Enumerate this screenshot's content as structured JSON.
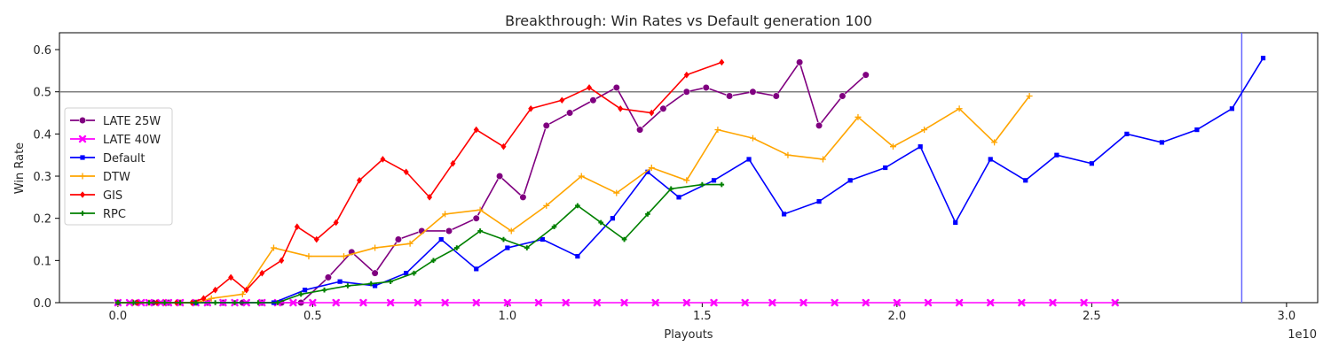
{
  "chart_data": {
    "type": "line",
    "title": "Breakthrough: Win Rates vs Default generation 100",
    "xlabel": "Playouts",
    "ylabel": "Win Rate",
    "x_offset_label": "1e10",
    "xlim": [
      -0.15,
      3.08
    ],
    "ylim": [
      0.0,
      0.64
    ],
    "x_ticks": [
      0.0,
      0.5,
      1.0,
      1.5,
      2.0,
      2.5,
      3.0
    ],
    "x_tick_labels": [
      "0.0",
      "0.5",
      "1.0",
      "1.5",
      "2.0",
      "2.5",
      "3.0"
    ],
    "y_ticks": [
      0.0,
      0.1,
      0.2,
      0.3,
      0.4,
      0.5,
      0.6
    ],
    "y_tick_labels": [
      "0.0",
      "0.1",
      "0.2",
      "0.3",
      "0.4",
      "0.5",
      "0.6"
    ],
    "grid": false,
    "legend_position": "center-left",
    "reference_lines": {
      "horizontal_y": 0.5,
      "horizontal_color": "#808080",
      "vertical_x": 2.885,
      "vertical_color": "#6666ff"
    },
    "series": [
      {
        "name": "LATE 25W",
        "color": "#800080",
        "marker": "circle",
        "x": [
          0.0,
          0.05,
          0.09,
          0.13,
          0.16,
          0.2,
          0.23,
          0.27,
          0.32,
          0.37,
          0.42,
          0.47,
          0.54,
          0.6,
          0.66,
          0.72,
          0.78,
          0.85,
          0.92,
          0.98,
          1.04,
          1.1,
          1.16,
          1.22,
          1.28,
          1.34,
          1.4,
          1.46,
          1.51,
          1.57,
          1.63,
          1.69,
          1.75,
          1.8,
          1.86,
          1.92
        ],
        "y": [
          0.0,
          0.0,
          0.0,
          0.0,
          0.0,
          0.0,
          0.0,
          0.0,
          0.0,
          0.0,
          0.0,
          0.0,
          0.06,
          0.12,
          0.07,
          0.15,
          0.17,
          0.17,
          0.2,
          0.3,
          0.25,
          0.42,
          0.45,
          0.48,
          0.51,
          0.41,
          0.46,
          0.5,
          0.51,
          0.49,
          0.5,
          0.49,
          0.57,
          0.42,
          0.49,
          0.54
        ]
      },
      {
        "name": "LATE 40W",
        "color": "#ff00ff",
        "marker": "x",
        "x": [
          0.0,
          0.03,
          0.06,
          0.08,
          0.11,
          0.13,
          0.16,
          0.2,
          0.23,
          0.27,
          0.3,
          0.33,
          0.37,
          0.41,
          0.45,
          0.5,
          0.56,
          0.63,
          0.7,
          0.77,
          0.84,
          0.92,
          1.0,
          1.08,
          1.15,
          1.23,
          1.3,
          1.38,
          1.46,
          1.53,
          1.61,
          1.68,
          1.76,
          1.84,
          1.92,
          2.0,
          2.08,
          2.16,
          2.24,
          2.32,
          2.4,
          2.48,
          2.56
        ],
        "y": [
          0.0,
          0.0,
          0.0,
          0.0,
          0.0,
          0.0,
          0.0,
          0.0,
          0.0,
          0.0,
          0.0,
          0.0,
          0.0,
          0.0,
          0.0,
          0.0,
          0.0,
          0.0,
          0.0,
          0.0,
          0.0,
          0.0,
          0.0,
          0.0,
          0.0,
          0.0,
          0.0,
          0.0,
          0.0,
          0.0,
          0.0,
          0.0,
          0.0,
          0.0,
          0.0,
          0.0,
          0.0,
          0.0,
          0.0,
          0.0,
          0.0,
          0.0,
          0.0
        ]
      },
      {
        "name": "Default",
        "color": "#0000ff",
        "marker": "square",
        "x": [
          0.0,
          0.2,
          0.4,
          0.48,
          0.57,
          0.66,
          0.74,
          0.83,
          0.92,
          1.0,
          1.09,
          1.18,
          1.27,
          1.36,
          1.44,
          1.53,
          1.62,
          1.71,
          1.8,
          1.88,
          1.97,
          2.06,
          2.15,
          2.24,
          2.33,
          2.41,
          2.5,
          2.59,
          2.68,
          2.77,
          2.86,
          2.94
        ],
        "y": [
          0.0,
          0.0,
          0.0,
          0.03,
          0.05,
          0.04,
          0.07,
          0.15,
          0.08,
          0.13,
          0.15,
          0.11,
          0.2,
          0.31,
          0.25,
          0.29,
          0.34,
          0.21,
          0.24,
          0.29,
          0.32,
          0.37,
          0.19,
          0.34,
          0.29,
          0.35,
          0.33,
          0.4,
          0.38,
          0.41,
          0.46,
          0.58
        ]
      },
      {
        "name": "DTW",
        "color": "#ffa500",
        "marker": "plus",
        "x": [
          0.0,
          0.04,
          0.08,
          0.12,
          0.16,
          0.2,
          0.24,
          0.32,
          0.4,
          0.49,
          0.58,
          0.66,
          0.75,
          0.84,
          0.93,
          1.01,
          1.1,
          1.19,
          1.28,
          1.37,
          1.46,
          1.54,
          1.63,
          1.72,
          1.81,
          1.9,
          1.99,
          2.07,
          2.16,
          2.25,
          2.34
        ],
        "y": [
          0.0,
          0.0,
          0.0,
          0.0,
          0.0,
          0.0,
          0.01,
          0.02,
          0.13,
          0.11,
          0.11,
          0.13,
          0.14,
          0.21,
          0.22,
          0.17,
          0.23,
          0.3,
          0.26,
          0.32,
          0.29,
          0.41,
          0.39,
          0.35,
          0.34,
          0.44,
          0.37,
          0.41,
          0.46,
          0.38,
          0.49
        ]
      },
      {
        "name": "GIS",
        "color": "#ff0000",
        "marker": "diamond",
        "x": [
          0.0,
          0.05,
          0.1,
          0.15,
          0.19,
          0.22,
          0.25,
          0.29,
          0.33,
          0.37,
          0.42,
          0.46,
          0.51,
          0.56,
          0.62,
          0.68,
          0.74,
          0.8,
          0.86,
          0.92,
          0.99,
          1.06,
          1.14,
          1.21,
          1.29,
          1.37,
          1.46,
          1.55
        ],
        "y": [
          0.0,
          0.0,
          0.0,
          0.0,
          0.0,
          0.01,
          0.03,
          0.06,
          0.03,
          0.07,
          0.1,
          0.18,
          0.15,
          0.19,
          0.29,
          0.34,
          0.31,
          0.25,
          0.33,
          0.41,
          0.37,
          0.46,
          0.48,
          0.51,
          0.46,
          0.45,
          0.54,
          0.57
        ]
      },
      {
        "name": "RPC",
        "color": "#008000",
        "marker": "plus-thick",
        "x": [
          0.0,
          0.04,
          0.08,
          0.12,
          0.16,
          0.2,
          0.25,
          0.3,
          0.36,
          0.41,
          0.47,
          0.53,
          0.59,
          0.65,
          0.7,
          0.76,
          0.81,
          0.87,
          0.93,
          0.99,
          1.05,
          1.12,
          1.18,
          1.24,
          1.3,
          1.36,
          1.42,
          1.5,
          1.55
        ],
        "y": [
          0.0,
          0.0,
          0.0,
          0.0,
          0.0,
          0.0,
          0.0,
          0.0,
          0.0,
          0.0,
          0.02,
          0.03,
          0.04,
          0.045,
          0.05,
          0.07,
          0.1,
          0.13,
          0.17,
          0.15,
          0.13,
          0.18,
          0.23,
          0.19,
          0.15,
          0.21,
          0.27,
          0.28,
          0.28
        ]
      }
    ]
  }
}
